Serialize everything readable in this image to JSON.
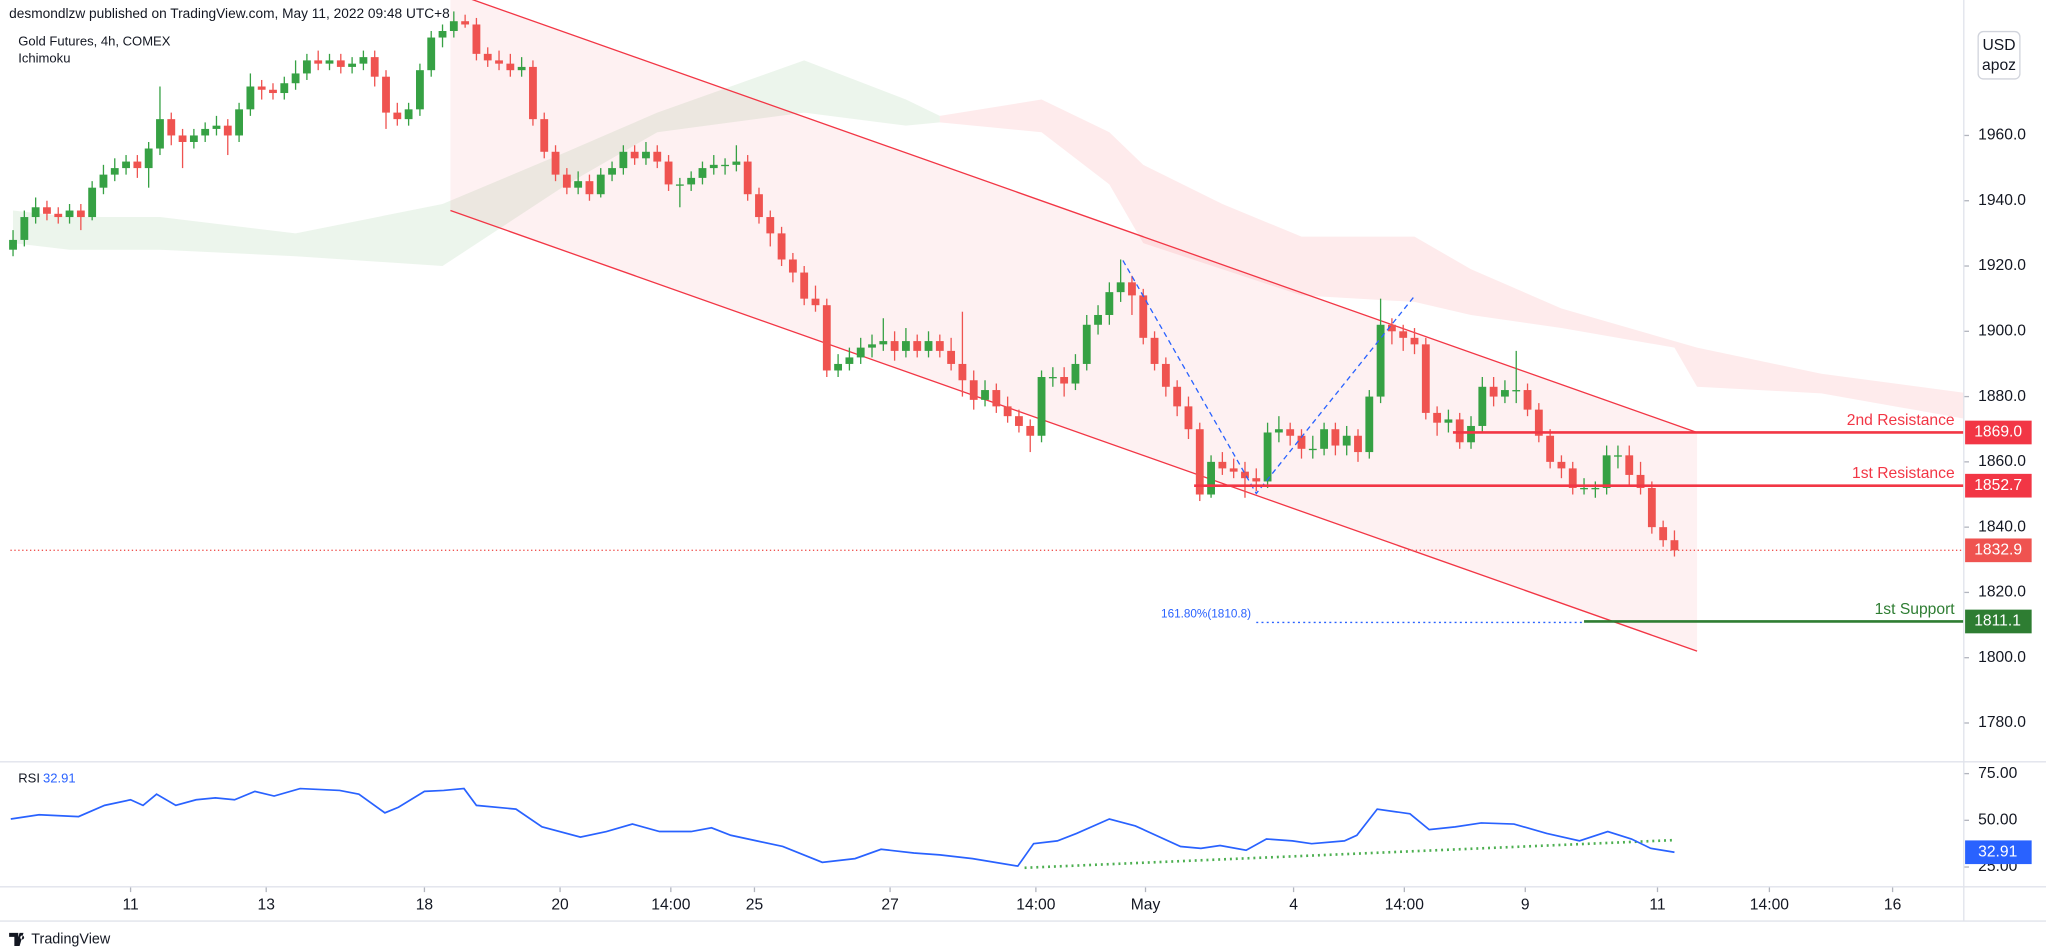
{
  "header": {
    "byline": "desmondlzw published on TradingView.com, May 11, 2022 09:48 UTC+8",
    "symbol": "Gold Futures, 4h, COMEX",
    "indicator": "Ichimoku"
  },
  "currency": {
    "code": "USD",
    "unit": "apoz"
  },
  "footer": {
    "brand": "TradingView"
  },
  "chart_data": [
    {
      "type": "candlestick",
      "up_color": "#36a144",
      "down_color": "#ef5350",
      "xlim": [
        -0.23,
        172.6
      ],
      "ylim": [
        1768.5,
        2001.5
      ],
      "yticks": [
        {
          "value": 1780,
          "label": "1780.0"
        },
        {
          "value": 1800,
          "label": "1800.0"
        },
        {
          "value": 1820,
          "label": "1820.0"
        },
        {
          "value": 1840,
          "label": "1840.0"
        },
        {
          "value": 1860,
          "label": "1860.0"
        },
        {
          "value": 1880,
          "label": "1880.0"
        },
        {
          "value": 1900,
          "label": "1900.0"
        },
        {
          "value": 1920,
          "label": "1920.0"
        },
        {
          "value": 1940,
          "label": "1940.0"
        },
        {
          "value": 1960,
          "label": "1960.0"
        }
      ],
      "xticks": [
        {
          "value": 10.4,
          "label": "11"
        },
        {
          "value": 22.4,
          "label": "13"
        },
        {
          "value": 36.4,
          "label": "18"
        },
        {
          "value": 48.4,
          "label": "20"
        },
        {
          "value": 58.2,
          "label": "14:00"
        },
        {
          "value": 65.6,
          "label": "25"
        },
        {
          "value": 77.6,
          "label": "27"
        },
        {
          "value": 90.5,
          "label": "14:00"
        },
        {
          "value": 100.2,
          "label": "May"
        },
        {
          "value": 113.3,
          "label": "4"
        },
        {
          "value": 123.1,
          "label": "14:00"
        },
        {
          "value": 133.8,
          "label": "9"
        },
        {
          "value": 145.5,
          "label": "11"
        },
        {
          "value": 155.4,
          "label": "14:00"
        },
        {
          "value": 166.3,
          "label": "16"
        }
      ],
      "grid": false,
      "candles": [
        [
          1925,
          1931,
          1923,
          1928
        ],
        [
          1928,
          1937,
          1926,
          1935
        ],
        [
          1935,
          1941,
          1933,
          1938
        ],
        [
          1938,
          1940,
          1934,
          1936
        ],
        [
          1936,
          1938,
          1933,
          1935
        ],
        [
          1935,
          1939,
          1933,
          1937
        ],
        [
          1937,
          1939,
          1931,
          1935
        ],
        [
          1935,
          1946,
          1934,
          1944
        ],
        [
          1944,
          1951,
          1942,
          1948
        ],
        [
          1948,
          1953,
          1946,
          1950
        ],
        [
          1950,
          1954,
          1948,
          1952
        ],
        [
          1952,
          1954,
          1947,
          1950
        ],
        [
          1950,
          1958,
          1944,
          1956
        ],
        [
          1956,
          1975,
          1954,
          1965
        ],
        [
          1965,
          1967,
          1957,
          1960
        ],
        [
          1960,
          1962,
          1950,
          1958
        ],
        [
          1958,
          1962,
          1956,
          1960
        ],
        [
          1960,
          1964,
          1958,
          1962
        ],
        [
          1962,
          1966,
          1960,
          1963
        ],
        [
          1963,
          1965,
          1954,
          1960
        ],
        [
          1960,
          1970,
          1958,
          1968
        ],
        [
          1968,
          1979,
          1966,
          1975
        ],
        [
          1975,
          1977,
          1971,
          1974
        ],
        [
          1974,
          1976,
          1971,
          1973
        ],
        [
          1973,
          1978,
          1971,
          1976
        ],
        [
          1976,
          1983,
          1974,
          1979
        ],
        [
          1979,
          1985,
          1977,
          1983
        ],
        [
          1983,
          1986,
          1980,
          1982
        ],
        [
          1982,
          1985,
          1980,
          1983
        ],
        [
          1983,
          1985,
          1979,
          1981
        ],
        [
          1981,
          1984,
          1979,
          1982
        ],
        [
          1982,
          1986,
          1980,
          1984
        ],
        [
          1984,
          1986,
          1975,
          1978
        ],
        [
          1978,
          1980,
          1962,
          1967
        ],
        [
          1967,
          1970,
          1963,
          1965
        ],
        [
          1965,
          1970,
          1963,
          1968
        ],
        [
          1968,
          1982,
          1966,
          1980
        ],
        [
          1980,
          1992,
          1978,
          1990
        ],
        [
          1990,
          1994,
          1987,
          1992
        ],
        [
          1992,
          1998,
          1990,
          1995
        ],
        [
          1995,
          1997,
          1993,
          1994
        ],
        [
          1994,
          1996,
          1983,
          1985
        ],
        [
          1985,
          1987,
          1981,
          1983
        ],
        [
          1983,
          1986,
          1980,
          1982
        ],
        [
          1982,
          1985,
          1978,
          1980
        ],
        [
          1980,
          1984,
          1978,
          1981
        ],
        [
          1981,
          1983,
          1963,
          1965
        ],
        [
          1965,
          1967,
          1953,
          1955
        ],
        [
          1955,
          1957,
          1946,
          1948
        ],
        [
          1948,
          1950,
          1942,
          1944
        ],
        [
          1944,
          1949,
          1942,
          1946
        ],
        [
          1946,
          1948,
          1940,
          1942
        ],
        [
          1942,
          1950,
          1941,
          1948
        ],
        [
          1948,
          1952,
          1946,
          1950
        ],
        [
          1950,
          1957,
          1948,
          1955
        ],
        [
          1955,
          1957,
          1951,
          1953
        ],
        [
          1953,
          1958,
          1951,
          1955
        ],
        [
          1955,
          1957,
          1950,
          1952
        ],
        [
          1952,
          1954,
          1943,
          1945
        ],
        [
          1945,
          1947,
          1938,
          1945
        ],
        [
          1945,
          1949,
          1943,
          1947
        ],
        [
          1947,
          1952,
          1945,
          1950
        ],
        [
          1950,
          1954,
          1948,
          1951
        ],
        [
          1951,
          1953,
          1948,
          1951
        ],
        [
          1951,
          1957,
          1949,
          1952
        ],
        [
          1952,
          1954,
          1940,
          1942
        ],
        [
          1942,
          1944,
          1933,
          1935
        ],
        [
          1935,
          1937,
          1926,
          1930
        ],
        [
          1930,
          1932,
          1920,
          1922
        ],
        [
          1922,
          1924,
          1915,
          1918
        ],
        [
          1918,
          1920,
          1908,
          1910
        ],
        [
          1910,
          1914,
          1906,
          1908
        ],
        [
          1908,
          1910,
          1886,
          1888
        ],
        [
          1888,
          1893,
          1886,
          1890
        ],
        [
          1890,
          1895,
          1888,
          1892
        ],
        [
          1892,
          1898,
          1890,
          1895
        ],
        [
          1895,
          1899,
          1892,
          1896
        ],
        [
          1896,
          1904,
          1894,
          1897
        ],
        [
          1897,
          1900,
          1891,
          1894
        ],
        [
          1894,
          1901,
          1892,
          1897
        ],
        [
          1897,
          1899,
          1892,
          1894
        ],
        [
          1894,
          1900,
          1892,
          1897
        ],
        [
          1897,
          1899,
          1892,
          1894
        ],
        [
          1894,
          1898,
          1888,
          1890
        ],
        [
          1890,
          1906,
          1880,
          1885
        ],
        [
          1885,
          1888,
          1876,
          1879
        ],
        [
          1879,
          1885,
          1877,
          1882
        ],
        [
          1882,
          1884,
          1875,
          1877
        ],
        [
          1877,
          1880,
          1872,
          1874
        ],
        [
          1874,
          1876,
          1869,
          1871
        ],
        [
          1871,
          1873,
          1863,
          1868
        ],
        [
          1868,
          1888,
          1866,
          1886
        ],
        [
          1886,
          1889,
          1883,
          1886
        ],
        [
          1886,
          1889,
          1880,
          1884
        ],
        [
          1884,
          1893,
          1882,
          1890
        ],
        [
          1890,
          1905,
          1888,
          1902
        ],
        [
          1902,
          1908,
          1899,
          1905
        ],
        [
          1905,
          1915,
          1902,
          1912
        ],
        [
          1912,
          1922,
          1909,
          1915
        ],
        [
          1915,
          1917,
          1905,
          1911
        ],
        [
          1911,
          1913,
          1896,
          1898
        ],
        [
          1898,
          1900,
          1888,
          1890
        ],
        [
          1890,
          1892,
          1880,
          1883
        ],
        [
          1883,
          1885,
          1874,
          1877
        ],
        [
          1877,
          1880,
          1867,
          1870
        ],
        [
          1870,
          1872,
          1848,
          1850
        ],
        [
          1850,
          1862,
          1849,
          1860
        ],
        [
          1860,
          1863,
          1856,
          1858
        ],
        [
          1858,
          1861,
          1855,
          1857
        ],
        [
          1857,
          1860,
          1849,
          1855
        ],
        [
          1855,
          1858,
          1851,
          1854
        ],
        [
          1854,
          1872,
          1852,
          1869
        ],
        [
          1869,
          1874,
          1866,
          1870
        ],
        [
          1870,
          1872,
          1865,
          1868
        ],
        [
          1868,
          1870,
          1861,
          1864
        ],
        [
          1864,
          1868,
          1861,
          1864
        ],
        [
          1864,
          1872,
          1862,
          1870
        ],
        [
          1870,
          1872,
          1862,
          1865
        ],
        [
          1865,
          1871,
          1862,
          1868
        ],
        [
          1868,
          1870,
          1860,
          1863
        ],
        [
          1863,
          1882,
          1861,
          1880
        ],
        [
          1880,
          1910,
          1878,
          1902
        ],
        [
          1902,
          1904,
          1896,
          1900
        ],
        [
          1900,
          1902,
          1894,
          1898
        ],
        [
          1898,
          1901,
          1893,
          1896
        ],
        [
          1896,
          1898,
          1873,
          1875
        ],
        [
          1875,
          1877,
          1868,
          1872
        ],
        [
          1872,
          1876,
          1869,
          1873
        ],
        [
          1873,
          1875,
          1864,
          1866
        ],
        [
          1866,
          1874,
          1864,
          1871
        ],
        [
          1871,
          1886,
          1869,
          1883
        ],
        [
          1883,
          1886,
          1877,
          1880
        ],
        [
          1880,
          1885,
          1878,
          1882
        ],
        [
          1882,
          1894,
          1878,
          1882
        ],
        [
          1882,
          1884,
          1874,
          1876
        ],
        [
          1876,
          1878,
          1866,
          1868
        ],
        [
          1868,
          1870,
          1858,
          1860
        ],
        [
          1860,
          1862,
          1855,
          1858
        ],
        [
          1858,
          1860,
          1850,
          1852
        ],
        [
          1852,
          1855,
          1850,
          1852
        ],
        [
          1852,
          1854,
          1849,
          1852
        ],
        [
          1852,
          1865,
          1850,
          1862
        ],
        [
          1862,
          1865,
          1858,
          1862
        ],
        [
          1862,
          1865,
          1853,
          1856
        ],
        [
          1856,
          1860,
          1850,
          1852
        ],
        [
          1852,
          1854,
          1838,
          1840
        ],
        [
          1840,
          1842,
          1834,
          1836
        ],
        [
          1836,
          1839,
          1831,
          1832.9
        ]
      ],
      "last_price_color": "#ef5350",
      "cloud": [
        {
          "color": "#43a047",
          "x": [
            0,
            5,
            13,
            25,
            38,
            49,
            57,
            70,
            79,
            82
          ],
          "upper": [
            1937,
            1935,
            1935,
            1930,
            1939,
            1955,
            1967,
            1983,
            1971,
            1966
          ],
          "lower": [
            1927,
            1925,
            1925,
            1923,
            1920,
            1945,
            1961,
            1967,
            1963,
            1964
          ]
        },
        {
          "color": "#f23645",
          "x": [
            82,
            91,
            97,
            100,
            107,
            114,
            124,
            129,
            137,
            147,
            149,
            160,
            173
          ],
          "upper": [
            1966,
            1971,
            1961,
            1951,
            1939,
            1929,
            1929,
            1919,
            1907,
            1897,
            1895,
            1887,
            1881
          ],
          "lower": [
            1964,
            1961,
            1945,
            1927,
            1919,
            1911,
            1909,
            1905,
            1901,
            1895,
            1883,
            1881,
            1873
          ]
        }
      ],
      "channel": {
        "color": "#f23645",
        "x": [
          38.7,
          149
        ],
        "upper": [
          2004,
          1869
        ],
        "lower": [
          1937,
          1802
        ]
      },
      "zigzag": {
        "color": "#2962ff",
        "x": [
          98.2,
          110,
          124
        ],
        "values": [
          1921.7,
          1850.3,
          1910.8
        ]
      },
      "fib": {
        "label": "161.80%(1810.8)",
        "value": 1810.8,
        "x": [
          110.0,
          139.1
        ],
        "color": "#2962ff"
      },
      "levels": [
        {
          "name": "2nd Resistance",
          "price": {
            "value": 1869,
            "label": "1869.0"
          },
          "start": 127.4,
          "color": "#f23645"
        },
        {
          "name": "1st Resistance",
          "price": 1852.7,
          "start": 104.5,
          "color": "#f23645"
        },
        {
          "name": "1st Support",
          "price": 1811.1,
          "start": 139,
          "color": "#2e7d32"
        }
      ]
    },
    {
      "type": "line",
      "title": "RSI",
      "color": "#2962ff",
      "ylim": [
        15.8,
        80.6
      ],
      "yticks": [
        {
          "value": 25,
          "label": "25.00"
        },
        {
          "value": 50,
          "label": "50.00"
        },
        {
          "value": 75,
          "label": "75.00"
        }
      ],
      "x": [
        -0.2,
        2.3,
        5.8,
        8.1,
        10.4,
        11.5,
        12.7,
        14.4,
        16.2,
        17.9,
        19.6,
        21.4,
        23.1,
        25.4,
        28.9,
        30.6,
        32.9,
        34.1,
        36.4,
        38.1,
        39.9,
        41,
        44.5,
        46.8,
        50.2,
        52.5,
        54.8,
        57.2,
        60,
        61.8,
        63.5,
        65.8,
        68.1,
        71.6,
        74.5,
        76.8,
        79.7,
        82,
        84.9,
        88.9,
        90.3,
        92.4,
        94.1,
        97,
        99.3,
        103.3,
        105.1,
        106.8,
        109.1,
        110.9,
        113.2,
        114.9,
        117.8,
        118.9,
        120.7,
        123.6,
        125.3,
        127.6,
        129.9,
        132.8,
        135.7,
        138.6,
        141.1,
        143.2,
        144.9,
        147
      ],
      "values": [
        50.7,
        53,
        52,
        58,
        61,
        58,
        64,
        58,
        61,
        62,
        61,
        65.5,
        63,
        67,
        66,
        64,
        54,
        57,
        65.5,
        66,
        67,
        58,
        56,
        46.5,
        41,
        44,
        48,
        44,
        44,
        46,
        42,
        39,
        36,
        27.5,
        29.5,
        34.5,
        32.5,
        31.5,
        29.5,
        25.5,
        37.5,
        39,
        43,
        50.7,
        47,
        36,
        35,
        36.5,
        34,
        40,
        39,
        37.5,
        39,
        42,
        56,
        53.5,
        45,
        46.5,
        48.6,
        48,
        43,
        39,
        44,
        40,
        35,
        32.91
      ],
      "divergence": {
        "color": "#4caf50",
        "x": [
          89.5,
          147
        ],
        "values": [
          24.6,
          39.4
        ]
      }
    }
  ]
}
